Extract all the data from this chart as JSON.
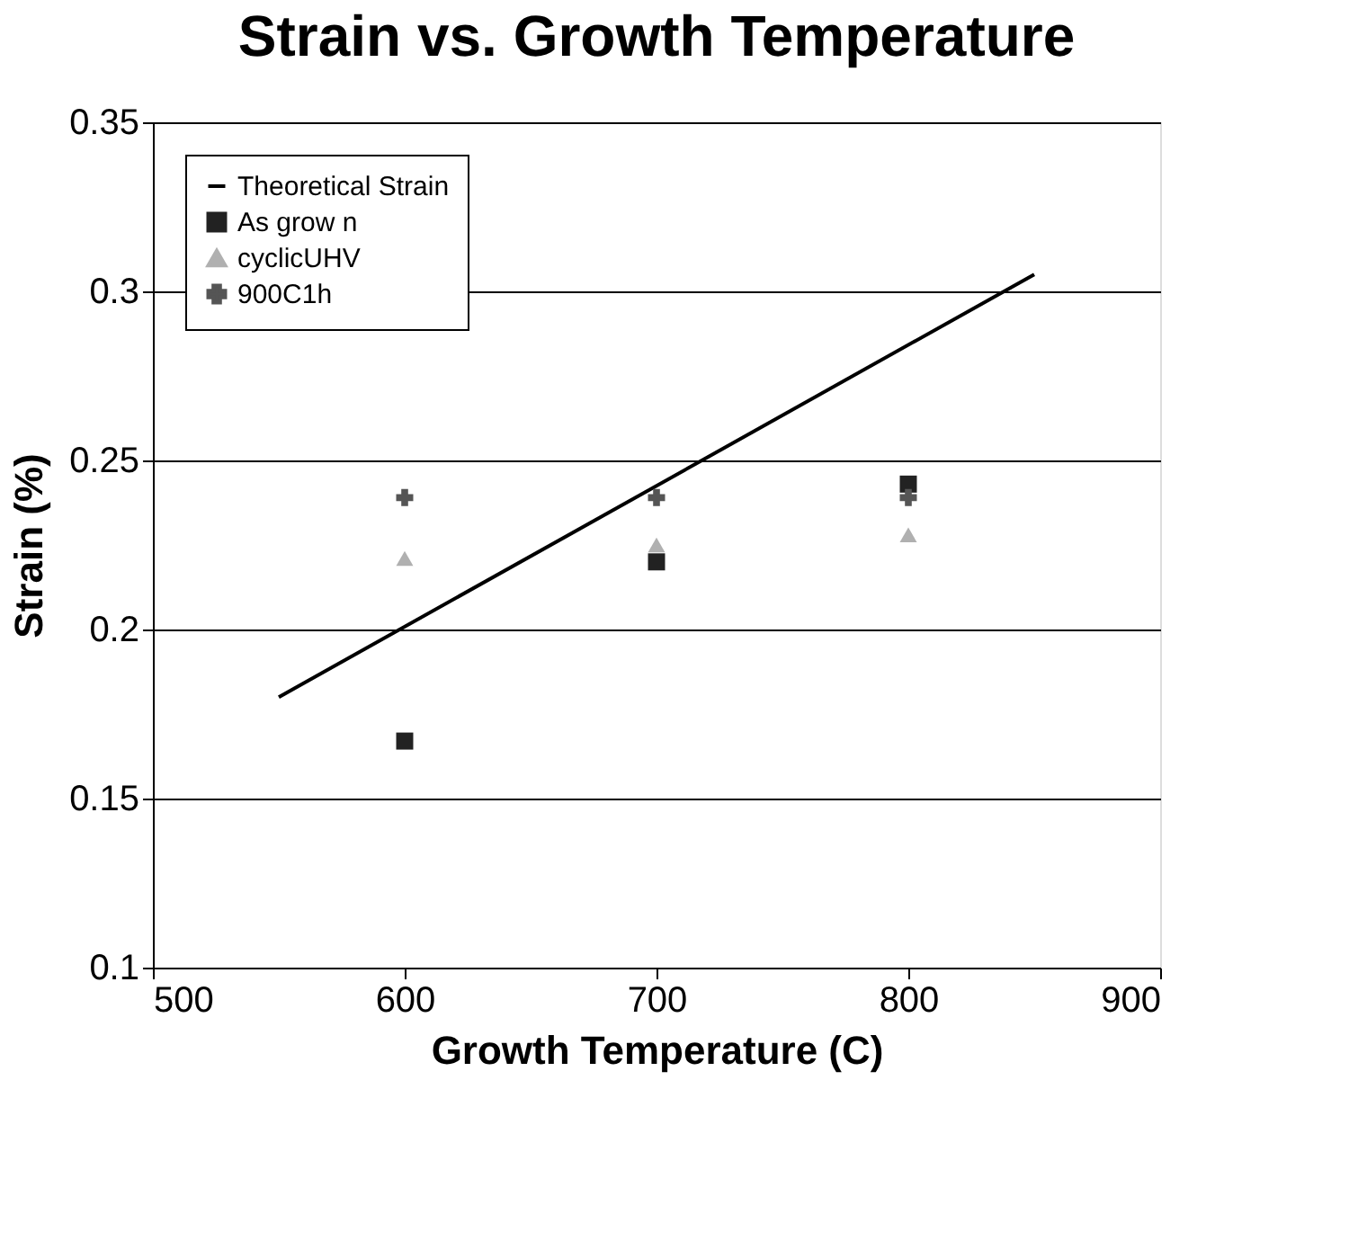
{
  "chart_data": {
    "type": "scatter",
    "title": "Strain vs. Growth Temperature",
    "xlabel": "Growth Temperature (C)",
    "ylabel": "Strain (%)",
    "xlim": [
      500,
      900
    ],
    "xticks": [
      500,
      600,
      700,
      800,
      900
    ],
    "ylim": [
      0.1,
      0.35
    ],
    "yticks": [
      0.1,
      0.15,
      0.2,
      0.25,
      0.3,
      0.35
    ],
    "grid": "y",
    "legend": "top left",
    "series": [
      {
        "name": "Theoretical Strain",
        "type": "line",
        "color": "#000000",
        "marker": "none",
        "x": [
          550,
          850
        ],
        "values": [
          0.18,
          0.305
        ]
      },
      {
        "name": "As grow n",
        "color": "#222222",
        "marker": "square",
        "x": [
          600,
          700,
          800
        ],
        "values": [
          0.167,
          0.22,
          0.243
        ]
      },
      {
        "name": "cyclicUHV",
        "color": "#b0b0b0",
        "marker": "triangle",
        "x": [
          600,
          700,
          800
        ],
        "values": [
          0.221,
          0.225,
          0.228
        ]
      },
      {
        "name": "900C1h",
        "color": "#555555",
        "marker": "cross",
        "x": [
          600,
          700,
          800
        ],
        "values": [
          0.239,
          0.239,
          0.239
        ]
      }
    ]
  }
}
